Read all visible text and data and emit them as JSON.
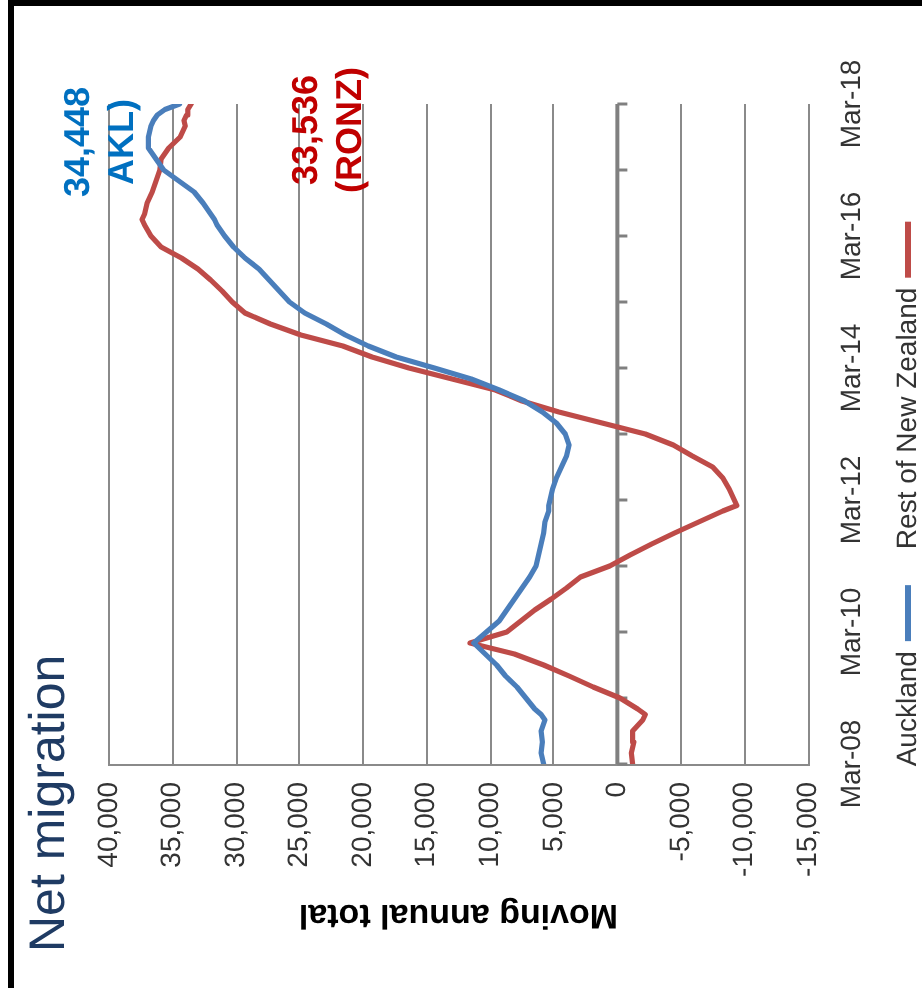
{
  "chart_data": {
    "type": "line",
    "orientation": "horizontal",
    "title": "Net migration",
    "xlabel": "Moving annual total",
    "x": [
      "2008-03",
      "2008-05",
      "2008-07",
      "2008-09",
      "2008-11",
      "2008-12",
      "2009-01",
      "2009-03",
      "2009-05",
      "2009-07",
      "2009-09",
      "2009-11",
      "2010-01",
      "2010-03",
      "2010-05",
      "2010-07",
      "2010-09",
      "2010-11",
      "2011-01",
      "2011-03",
      "2011-05",
      "2011-07",
      "2011-09",
      "2011-11",
      "2012-01",
      "2012-02",
      "2012-03",
      "2012-05",
      "2012-07",
      "2012-09",
      "2012-11",
      "2013-01",
      "2013-03",
      "2013-05",
      "2013-07",
      "2013-09",
      "2013-11",
      "2014-01",
      "2014-03",
      "2014-05",
      "2014-07",
      "2014-09",
      "2014-11",
      "2015-01",
      "2015-03",
      "2015-05",
      "2015-07",
      "2015-09",
      "2015-11",
      "2016-01",
      "2016-03",
      "2016-05",
      "2016-06",
      "2016-07",
      "2016-09",
      "2016-11",
      "2017-01",
      "2017-03",
      "2017-05",
      "2017-07",
      "2017-09",
      "2017-11",
      "2017-12",
      "2018-01",
      "2018-02",
      "2018-03"
    ],
    "series": [
      {
        "name": "Auckland",
        "color": "#4a7ebb",
        "values": [
          5800,
          6000,
          5900,
          6000,
          5700,
          6000,
          6500,
          7200,
          7900,
          8800,
          9500,
          10400,
          11300,
          10300,
          9300,
          8700,
          8100,
          7500,
          6900,
          6400,
          6200,
          6000,
          5800,
          5700,
          5400,
          5400,
          5300,
          5100,
          4800,
          4400,
          4000,
          3800,
          4100,
          4800,
          5900,
          7300,
          9300,
          11500,
          14400,
          17400,
          19600,
          21400,
          22900,
          24600,
          25800,
          26600,
          27400,
          28200,
          29300,
          30200,
          30900,
          31500,
          31700,
          32000,
          32600,
          33300,
          34500,
          35700,
          36300,
          36900,
          36900,
          36700,
          36500,
          36200,
          35600,
          34448
        ]
      },
      {
        "name": "Rest of New Zealand",
        "color": "#be4b48",
        "values": [
          -1200,
          -1100,
          -1300,
          -1200,
          -2000,
          -2200,
          -1600,
          -200,
          1900,
          3800,
          5800,
          8100,
          11600,
          8700,
          7600,
          6500,
          5200,
          4000,
          2900,
          600,
          -1000,
          -2700,
          -4500,
          -6400,
          -8300,
          -9400,
          -9200,
          -8800,
          -8300,
          -7500,
          -5900,
          -4400,
          -2200,
          1200,
          4600,
          7500,
          9600,
          13000,
          16400,
          19300,
          21600,
          24900,
          27300,
          29300,
          30300,
          31100,
          32000,
          33000,
          34300,
          35900,
          36700,
          37200,
          37400,
          37200,
          37000,
          36600,
          36300,
          36000,
          35900,
          35300,
          34400,
          34000,
          34100,
          33900,
          33800,
          33536
        ]
      }
    ],
    "xlim": [
      40000,
      -15000
    ],
    "xticks": [
      {
        "value": 40000,
        "label": "40,000"
      },
      {
        "value": 35000,
        "label": "35,000"
      },
      {
        "value": 30000,
        "label": "30,000"
      },
      {
        "value": 25000,
        "label": "25,000"
      },
      {
        "value": 20000,
        "label": "20,000"
      },
      {
        "value": 15000,
        "label": "15,000"
      },
      {
        "value": 10000,
        "label": "10,000"
      },
      {
        "value": 5000,
        "label": "5,000"
      },
      {
        "value": 0,
        "label": "0"
      },
      {
        "value": -5000,
        "label": "-5,000"
      },
      {
        "value": -10000,
        "label": "-10,000"
      },
      {
        "value": -15000,
        "label": "-15,000"
      }
    ],
    "ylim": [
      "2008-03",
      "2018-03"
    ],
    "yticks": [
      {
        "value": "2008-03",
        "label": "Mar-08"
      },
      {
        "value": "2009-03",
        "label": null
      },
      {
        "value": "2010-03",
        "label": "Mar-10"
      },
      {
        "value": "2011-03",
        "label": null
      },
      {
        "value": "2012-03",
        "label": "Mar-12"
      },
      {
        "value": "2013-03",
        "label": null
      },
      {
        "value": "2014-03",
        "label": "Mar-14"
      },
      {
        "value": "2015-03",
        "label": null
      },
      {
        "value": "2016-03",
        "label": "Mar-16"
      },
      {
        "value": "2017-03",
        "label": null
      },
      {
        "value": "2018-03",
        "label": "Mar-18"
      }
    ],
    "grid": "x",
    "legend": "right",
    "marker": "none",
    "annotations": [
      {
        "text": "34,448\nAKL)",
        "x": 34448,
        "y": "2018-03"
      },
      {
        "text": "33,536\n(RONZ)",
        "x": 33536,
        "y": "2018-03"
      }
    ]
  }
}
